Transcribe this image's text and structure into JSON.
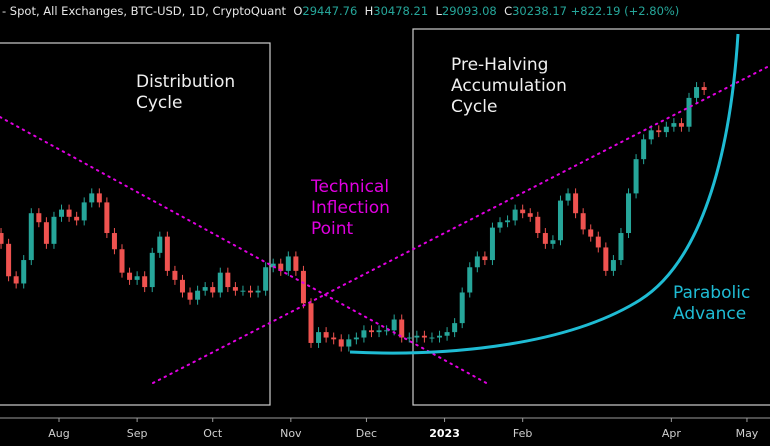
{
  "header": {
    "symbol": "- Spot, All Exchanges, BTC-USD, 1D, CryptoQuant",
    "open_label": "O",
    "open": "29447.76",
    "high_label": "H",
    "high": "30478.21",
    "low_label": "L",
    "low": "29093.08",
    "close_label": "C",
    "close": "30238.17",
    "change": "+822.19 (+2.80%)"
  },
  "annotations": {
    "distribution": [
      "Distribution",
      "Cycle"
    ],
    "inflection": [
      "Technical",
      "Inflection",
      "Point"
    ],
    "accumulation": [
      "Pre-Halving",
      "Accumulation",
      "Cycle"
    ],
    "parabolic": [
      "Parabolic",
      "Advance"
    ]
  },
  "colors": {
    "up": "#26a69a",
    "down": "#ef5350",
    "trendline": "#e000e0",
    "parabola": "#1fbcd4",
    "box": "#cfcfcf",
    "background": "#000000"
  },
  "chart_data": {
    "type": "candlestick",
    "title": "",
    "xlabel": "",
    "ylabel": "",
    "x_ticks": [
      "Aug",
      "Sep",
      "Oct",
      "Nov",
      "Dec",
      "2023",
      "Feb",
      "Apr",
      "May"
    ],
    "x_tick_dates": [
      "2022-08-01",
      "2022-09-01",
      "2022-10-01",
      "2022-11-01",
      "2022-12-01",
      "2023-01-01",
      "2023-02-01",
      "2023-04-01",
      "2023-05-01"
    ],
    "grid": false,
    "legend": "none",
    "dates": [
      "2022-07-09",
      "2022-07-12",
      "2022-07-15",
      "2022-07-18",
      "2022-07-21",
      "2022-07-24",
      "2022-07-27",
      "2022-07-30",
      "2022-08-02",
      "2022-08-05",
      "2022-08-08",
      "2022-08-11",
      "2022-08-14",
      "2022-08-17",
      "2022-08-20",
      "2022-08-23",
      "2022-08-26",
      "2022-08-29",
      "2022-09-01",
      "2022-09-04",
      "2022-09-07",
      "2022-09-10",
      "2022-09-13",
      "2022-09-16",
      "2022-09-19",
      "2022-09-22",
      "2022-09-25",
      "2022-09-28",
      "2022-10-01",
      "2022-10-04",
      "2022-10-07",
      "2022-10-10",
      "2022-10-13",
      "2022-10-16",
      "2022-10-19",
      "2022-10-22",
      "2022-10-25",
      "2022-10-28",
      "2022-10-31",
      "2022-11-03",
      "2022-11-06",
      "2022-11-09",
      "2022-11-12",
      "2022-11-15",
      "2022-11-18",
      "2022-11-21",
      "2022-11-24",
      "2022-11-27",
      "2022-11-30",
      "2022-12-03",
      "2022-12-06",
      "2022-12-09",
      "2022-12-12",
      "2022-12-15",
      "2022-12-18",
      "2022-12-21",
      "2022-12-24",
      "2022-12-27",
      "2022-12-30",
      "2023-01-02",
      "2023-01-05",
      "2023-01-08",
      "2023-01-11",
      "2023-01-14",
      "2023-01-17",
      "2023-01-20",
      "2023-01-23",
      "2023-01-26",
      "2023-01-29",
      "2023-02-01",
      "2023-02-04",
      "2023-02-07",
      "2023-02-10",
      "2023-02-13",
      "2023-02-16",
      "2023-02-19",
      "2023-02-22",
      "2023-02-25",
      "2023-02-28",
      "2023-03-03",
      "2023-03-06",
      "2023-03-09",
      "2023-03-12",
      "2023-03-15",
      "2023-03-18",
      "2023-03-21",
      "2023-03-24",
      "2023-03-27",
      "2023-03-30",
      "2023-04-02",
      "2023-04-05",
      "2023-04-08",
      "2023-04-11",
      "2023-04-14"
    ],
    "close": [
      21700,
      19900,
      19500,
      20800,
      23400,
      22900,
      21700,
      23200,
      23600,
      23200,
      23000,
      24000,
      24500,
      24000,
      22300,
      21400,
      20100,
      19700,
      19900,
      19300,
      21200,
      22100,
      20200,
      19700,
      19000,
      18600,
      19100,
      19300,
      19000,
      20100,
      19300,
      19100,
      19100,
      19000,
      19100,
      20400,
      20600,
      20200,
      21000,
      20200,
      18400,
      16200,
      16800,
      16500,
      16400,
      16000,
      16400,
      16500,
      16900,
      16800,
      16900,
      16900,
      17500,
      16500,
      16500,
      16600,
      16500,
      16500,
      16600,
      16800,
      17300,
      19000,
      20400,
      21000,
      20800,
      22600,
      22900,
      23000,
      23600,
      23400,
      23200,
      22300,
      21700,
      21900,
      24100,
      24500,
      23400,
      22500,
      22100,
      21500,
      20200,
      20800,
      22300,
      24500,
      26400,
      27500,
      28000,
      27900,
      28200,
      28400,
      28200,
      29800,
      30400,
      30238
    ]
  }
}
